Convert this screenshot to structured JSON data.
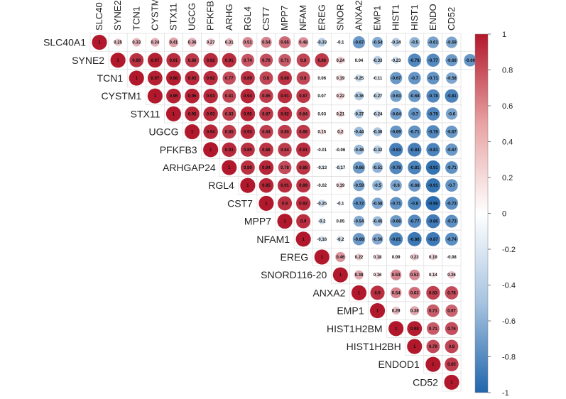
{
  "chart_data": {
    "type": "heatmap",
    "title": "",
    "variables": [
      "SLC40A1",
      "SYNE2",
      "TCN1",
      "CYSTM1",
      "STX11",
      "UGCG",
      "PFKFB3",
      "ARHGAP24",
      "RGL4",
      "CST7",
      "MPP7",
      "NFAM1",
      "EREG",
      "SNORD116-20",
      "ANXA2",
      "EMP1",
      "HIST1H2BM",
      "HIST1H2BH",
      "ENDOD1",
      "CD52"
    ],
    "column_labels_visible": [
      "SLC40",
      "SYNE2",
      "TCN1",
      "CYSTM",
      "STX11",
      "UGCG",
      "PFKFB",
      "ARHG",
      "RGL4",
      "CST7",
      "MPP7",
      "NFAM",
      "EREG",
      "SNOR",
      "ANXA2",
      "EMP1",
      "HIST1",
      "HIST1",
      "ENDO",
      "CD52"
    ],
    "upper_triangle": [
      [
        1,
        0.25,
        0.33,
        0.34,
        0.41,
        0.36,
        0.27,
        0.31,
        0.51,
        0.54,
        0.65,
        0.48,
        -0.33,
        -0.1,
        -0.67,
        -0.54,
        -0.34,
        -0.5,
        -0.61,
        -0.59
      ],
      [
        1,
        0.89,
        0.97,
        0.91,
        0.86,
        0.92,
        0.91,
        0.74,
        0.76,
        0.71,
        0.8,
        0.86,
        0.24,
        0.04,
        -0.33,
        -0.23,
        -0.78,
        -0.77,
        -0.66,
        -0.69
      ],
      [
        1,
        0.97,
        0.98,
        0.93,
        0.92,
        0.77,
        0.89,
        0.8,
        0.89,
        0.8,
        0.06,
        0.19,
        -0.25,
        -0.11,
        -0.67,
        -0.7,
        -0.71,
        -0.58
      ],
      [
        1,
        0.96,
        0.96,
        0.93,
        0.81,
        0.94,
        0.85,
        0.91,
        0.87,
        0.07,
        0.22,
        -0.36,
        -0.27,
        -0.63,
        -0.68,
        -0.78,
        -0.81
      ],
      [
        1,
        0.95,
        0.93,
        0.83,
        0.95,
        0.87,
        0.92,
        0.84,
        0.03,
        0.21,
        -0.37,
        -0.24,
        -0.64,
        -0.7,
        -0.79,
        -0.6
      ],
      [
        1,
        0.94,
        0.85,
        0.93,
        0.84,
        0.85,
        0.86,
        0.15,
        0.2,
        -0.44,
        -0.36,
        -0.69,
        -0.71,
        -0.78,
        -0.67
      ],
      [
        1,
        0.93,
        0.89,
        0.88,
        0.84,
        0.91,
        -0.01,
        -0.06,
        -0.46,
        -0.32,
        -0.83,
        -0.84,
        -0.81,
        -0.67
      ],
      [
        1,
        0.89,
        0.94,
        0.78,
        0.88,
        -0.13,
        -0.17,
        -0.66,
        -0.51,
        -0.78,
        -0.81,
        -0.91,
        -0.71
      ],
      [
        1,
        0.95,
        0.91,
        0.89,
        -0.02,
        0.19,
        -0.59,
        -0.5,
        -0.6,
        -0.68,
        -0.91,
        -0.7
      ],
      [
        1,
        0.9,
        0.92,
        -0.25,
        -0.1,
        -0.72,
        -0.58,
        -0.71,
        -0.8,
        -0.96,
        -0.73
      ],
      [
        1,
        0.9,
        -0.2,
        0.05,
        -0.54,
        -0.45,
        -0.66,
        -0.77,
        -0.86,
        -0.73
      ],
      [
        1,
        -0.18,
        -0.2,
        -0.68,
        -0.56,
        -0.81,
        -0.88,
        -0.87,
        -0.74
      ],
      [
        1,
        0.46,
        0.22,
        0.18,
        0.09,
        0.23,
        0.19,
        -0.08
      ],
      [
        1,
        0.38,
        0.16,
        0.53,
        0.52,
        0.14,
        0.26
      ],
      [
        1,
        0.9,
        0.54,
        0.63,
        0.83,
        0.78
      ],
      [
        1,
        0.29,
        0.38,
        0.71,
        0.67
      ],
      [
        1,
        0.98,
        0.71,
        0.76
      ],
      [
        1,
        0.79,
        0.8
      ],
      [
        1,
        0.85
      ],
      [
        1
      ]
    ],
    "colorbar": {
      "range": [
        -1,
        1
      ],
      "ticks": [
        "1",
        "0.8",
        "0.6",
        "0.4",
        "0.2",
        "0",
        "-0.2",
        "-0.4",
        "-0.6",
        "-0.8",
        "-1"
      ],
      "colors": {
        "negative": "#2166ac",
        "zero": "#ffffff",
        "positive": "#b2182b"
      }
    },
    "grid": true,
    "legend": "right"
  }
}
